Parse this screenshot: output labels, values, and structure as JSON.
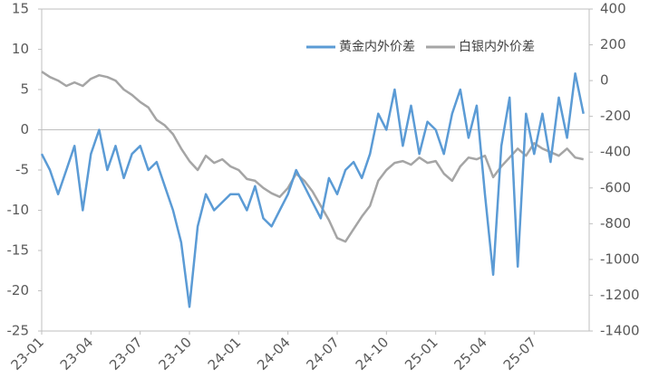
{
  "chart_data": {
    "type": "line",
    "categories": [
      "23-01",
      null,
      null,
      null,
      null,
      null,
      "23-04",
      null,
      null,
      null,
      null,
      null,
      "23-07",
      null,
      null,
      null,
      null,
      null,
      "23-10",
      null,
      null,
      null,
      null,
      null,
      "24-01",
      null,
      null,
      null,
      null,
      null,
      "24-04",
      null,
      null,
      null,
      null,
      null,
      "24-07",
      null,
      null,
      null,
      null,
      null,
      "24-10",
      null,
      null,
      null,
      null,
      null,
      "25-01",
      null,
      null,
      null,
      null,
      null,
      "25-04",
      null,
      null,
      null,
      null,
      null,
      "25-07",
      null,
      null,
      null,
      null,
      null,
      null
    ],
    "series": [
      {
        "name": "黄金内外价差",
        "color": "#5b9bd5",
        "axis": "y",
        "values": [
          -3,
          -5,
          -8,
          -5,
          -2,
          -10,
          -3,
          0,
          -5,
          -2,
          -6,
          -3,
          -2,
          -5,
          -4,
          -7,
          -10,
          -14,
          -22,
          -12,
          -8,
          -10,
          -9,
          -8,
          -8,
          -10,
          -7,
          -11,
          -12,
          -10,
          -8,
          -5,
          -7,
          -9,
          -11,
          -6,
          -8,
          -5,
          -4,
          -6,
          -3,
          2,
          0,
          5,
          -2,
          3,
          -3,
          1,
          0,
          -3,
          2,
          5,
          -1,
          3,
          -8,
          -18,
          -2,
          4,
          -17,
          2,
          -3,
          2,
          -4,
          4,
          -1,
          7,
          2
        ]
      },
      {
        "name": "白银内外价差",
        "color": "#a5a5a5",
        "axis": "y2",
        "values": [
          50,
          20,
          0,
          -30,
          -10,
          -30,
          10,
          30,
          20,
          0,
          -50,
          -80,
          -120,
          -150,
          -220,
          -250,
          -300,
          -380,
          -450,
          -500,
          -420,
          -460,
          -440,
          -480,
          -500,
          -550,
          -560,
          -600,
          -630,
          -650,
          -600,
          -520,
          -560,
          -620,
          -700,
          -780,
          -880,
          -900,
          -830,
          -760,
          -700,
          -560,
          -500,
          -460,
          -450,
          -470,
          -430,
          -460,
          -450,
          -520,
          -560,
          -480,
          -430,
          -440,
          -420,
          -540,
          -480,
          -430,
          -380,
          -420,
          -350,
          -380,
          -400,
          -420,
          -380,
          -430,
          -440
        ]
      }
    ],
    "ylim": [
      -25,
      15
    ],
    "yticks": [
      -25,
      -20,
      -15,
      -10,
      -5,
      0,
      5,
      10,
      15
    ],
    "y2lim": [
      -1400,
      400
    ],
    "y2ticks": [
      -1400,
      -1200,
      -1000,
      -800,
      -600,
      -400,
      -200,
      0,
      200,
      400
    ],
    "legend": "top-right"
  }
}
